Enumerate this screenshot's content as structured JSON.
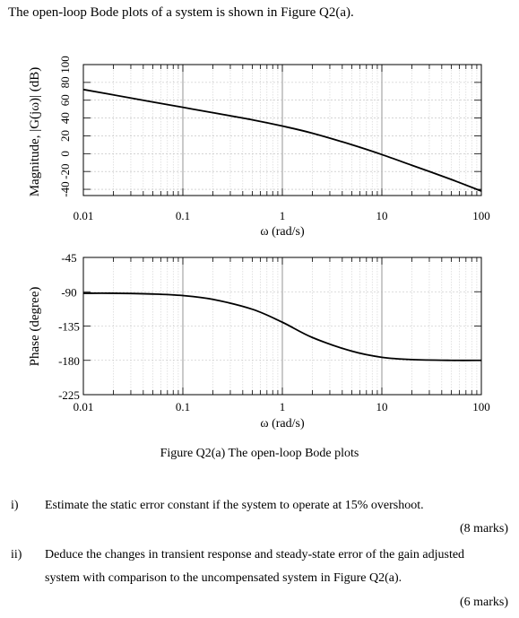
{
  "intro": "The open-loop Bode plots of a system is shown in Figure Q2(a).",
  "caption": "Figure Q2(a) The open-loop Bode plots",
  "questions": [
    {
      "num": "i)",
      "text": "Estimate the static error constant if the system to operate at 15% overshoot.",
      "marks": "(8 marks)"
    },
    {
      "num": "ii)",
      "text": "Deduce the changes in transient response and steady-state error of the gain adjusted",
      "text2": "system with comparison to the uncompensated system in Figure Q2(a).",
      "marks": "(6 marks)"
    }
  ],
  "chart_data": [
    {
      "type": "line",
      "xscale": "log",
      "xlim": [
        0.01,
        100
      ],
      "xlabel": "ω (rad/s)",
      "ylabel": "Magnitude, |G(jω)| (dB)",
      "ylim": [
        -50,
        100
      ],
      "yticks": [
        100,
        80,
        60,
        40,
        20,
        0,
        -20,
        -40
      ],
      "xticks": [
        "0.01",
        "0.1",
        "1",
        "10",
        "100"
      ],
      "grid": true,
      "x": [
        0.01,
        0.02,
        0.05,
        0.1,
        0.2,
        0.5,
        1,
        2,
        5,
        10,
        20,
        50,
        100
      ],
      "y": [
        72,
        66,
        58,
        52,
        46,
        38,
        31,
        23,
        10,
        -1,
        -13,
        -29,
        -42
      ]
    },
    {
      "type": "line",
      "xscale": "log",
      "xlim": [
        0.01,
        100
      ],
      "xlabel": "ω (rad/s)",
      "ylabel": "Phase (degree)",
      "ylim": [
        -225,
        -45
      ],
      "yticks": [
        -45,
        -90,
        -135,
        -180,
        -225
      ],
      "xticks": [
        "0.01",
        "0.1",
        "1",
        "10",
        "100"
      ],
      "grid": true,
      "x": [
        0.01,
        0.02,
        0.05,
        0.1,
        0.2,
        0.5,
        1,
        2,
        5,
        10,
        20,
        50,
        100
      ],
      "y": [
        -92,
        -92,
        -93,
        -95,
        -100,
        -113,
        -130,
        -150,
        -168,
        -176,
        -179,
        -180,
        -180
      ]
    }
  ]
}
